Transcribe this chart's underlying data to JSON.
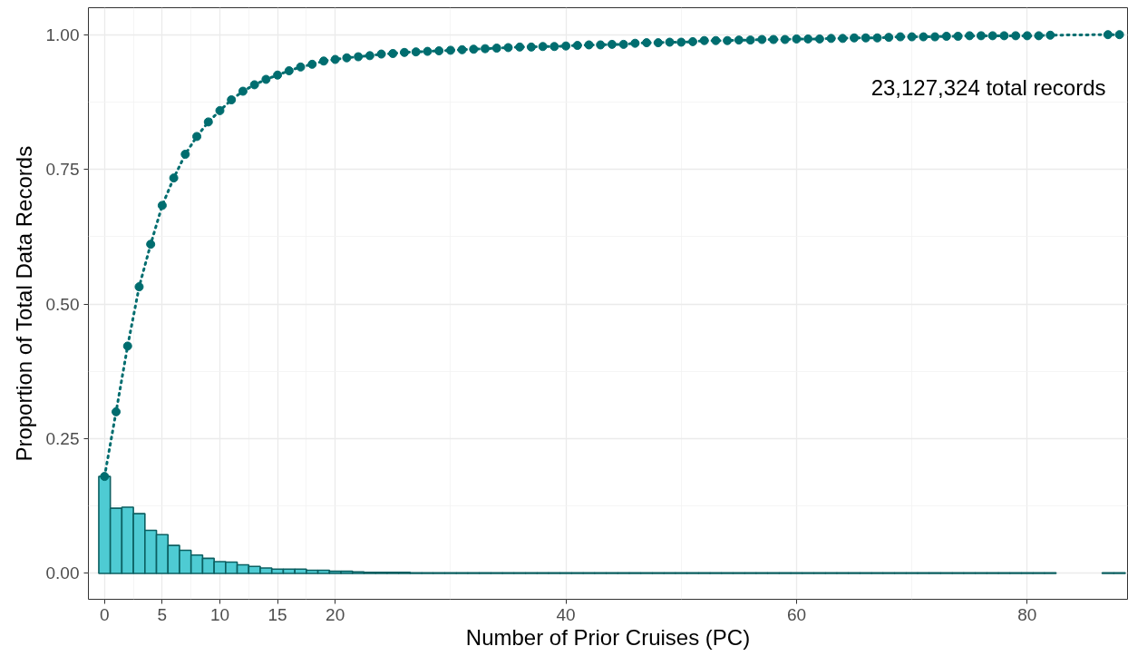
{
  "chart_data": {
    "type": "bar",
    "xlabel": "Number of Prior Cruises (PC)",
    "ylabel": "Proportion of Total Data Records",
    "annotations": [
      "23,127,324 total records"
    ],
    "xlim": [
      -1.4,
      88.7
    ],
    "xticks": [
      0,
      5,
      10,
      15,
      20,
      40,
      60,
      80
    ],
    "ylim": [
      -0.048,
      1.05
    ],
    "yticks": [
      {
        "value": 0,
        "label": "0.00"
      },
      {
        "value": 0.25,
        "label": "0.25"
      },
      {
        "value": 0.5,
        "label": "0.50"
      },
      {
        "value": 0.75,
        "label": "0.75"
      },
      {
        "value": 1,
        "label": "1.00"
      }
    ],
    "grid": true,
    "series": [
      {
        "color": "#4ecbd3",
        "x": [
          0,
          1,
          2,
          3,
          4,
          5,
          6,
          7,
          8,
          9,
          10,
          11,
          12,
          13,
          14,
          15,
          16,
          17,
          18,
          19,
          20,
          21,
          22,
          23,
          24,
          25,
          26,
          27,
          28,
          29,
          30,
          31,
          32,
          33,
          34,
          35,
          36,
          37,
          38,
          39,
          40,
          41,
          42,
          43,
          44,
          45,
          46,
          47,
          48,
          49,
          50,
          51,
          52,
          53,
          54,
          55,
          56,
          57,
          58,
          59,
          60,
          61,
          62,
          63,
          64,
          65,
          66,
          67,
          68,
          69,
          70,
          71,
          72,
          73,
          74,
          75,
          76,
          77,
          78,
          79,
          80,
          81,
          82,
          87,
          88
        ],
        "values": [
          0.18,
          0.121,
          0.123,
          0.111,
          0.08,
          0.072,
          0.052,
          0.043,
          0.034,
          0.028,
          0.022,
          0.021,
          0.016,
          0.013,
          0.01,
          0.008,
          0.008,
          0.008,
          0.006,
          0.006,
          0.004,
          0.004,
          0.003,
          0.002,
          0.002,
          0.002,
          0.002,
          0.001,
          0.001,
          0.001,
          0.001,
          0.001,
          0.001,
          0.001,
          0.001,
          0.001,
          0.001,
          0.001,
          0.001,
          0.001,
          0.001,
          0.001,
          0.001,
          0.001,
          0.001,
          0.001,
          0.001,
          0.001,
          0.001,
          0.001,
          0.001,
          0.001,
          0.001,
          0.001,
          0.001,
          0.001,
          0.001,
          0.001,
          0.001,
          0.001,
          0.001,
          0.001,
          0.001,
          0.001,
          0.001,
          0.001,
          0.001,
          0.001,
          0.001,
          0.001,
          0.001,
          0.001,
          0.001,
          0.001,
          0.001,
          0.001,
          0.001,
          0.001,
          0.001,
          0.001,
          0.001,
          0.001,
          0.001,
          0.001,
          0.001
        ]
      },
      {
        "type": "line",
        "color": "#006d6f",
        "marker": "circle",
        "line_style": "dotted",
        "x": [
          0,
          1,
          2,
          3,
          4,
          5,
          6,
          7,
          8,
          9,
          10,
          11,
          12,
          13,
          14,
          15,
          16,
          17,
          18,
          19,
          20,
          21,
          22,
          23,
          24,
          25,
          26,
          27,
          28,
          29,
          30,
          31,
          32,
          33,
          34,
          35,
          36,
          37,
          38,
          39,
          40,
          41,
          42,
          43,
          44,
          45,
          46,
          47,
          48,
          49,
          50,
          51,
          52,
          53,
          54,
          55,
          56,
          57,
          58,
          59,
          60,
          61,
          62,
          63,
          64,
          65,
          66,
          67,
          68,
          69,
          70,
          71,
          72,
          73,
          74,
          75,
          76,
          77,
          78,
          79,
          80,
          81,
          82,
          87,
          88
        ],
        "values": [
          0.18,
          0.3,
          0.422,
          0.532,
          0.611,
          0.683,
          0.734,
          0.778,
          0.811,
          0.838,
          0.859,
          0.879,
          0.895,
          0.907,
          0.917,
          0.925,
          0.933,
          0.94,
          0.945,
          0.951,
          0.954,
          0.957,
          0.959,
          0.961,
          0.964,
          0.965,
          0.967,
          0.968,
          0.969,
          0.97,
          0.971,
          0.972,
          0.973,
          0.974,
          0.975,
          0.976,
          0.977,
          0.977,
          0.978,
          0.978,
          0.979,
          0.98,
          0.981,
          0.981,
          0.982,
          0.982,
          0.984,
          0.985,
          0.985,
          0.986,
          0.986,
          0.987,
          0.989,
          0.989,
          0.989,
          0.99,
          0.99,
          0.991,
          0.991,
          0.991,
          0.992,
          0.992,
          0.992,
          0.993,
          0.993,
          0.994,
          0.994,
          0.994,
          0.995,
          0.996,
          0.996,
          0.996,
          0.996,
          0.997,
          0.997,
          0.998,
          0.998,
          0.998,
          0.998,
          0.998,
          0.998,
          0.998,
          0.999,
          1.0,
          1.0
        ]
      }
    ]
  }
}
